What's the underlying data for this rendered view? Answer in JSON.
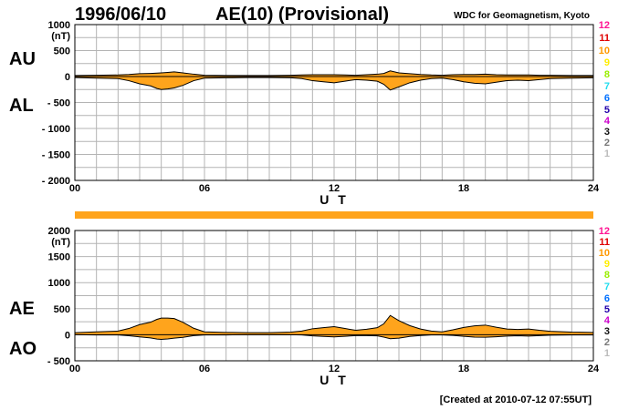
{
  "header": {
    "date": "1996/06/10",
    "index_title": "AE(10) (Provisional)",
    "source": "WDC for Geomagnetism, Kyoto"
  },
  "footer": {
    "created": "[Created at 2010-07-12 07:55UT]"
  },
  "colors": {
    "fill": "#ffa41c",
    "grid": "#b4b4b4",
    "bar": "#ffa41c"
  },
  "legend": {
    "items": [
      {
        "label": "12",
        "color": "#ff1493"
      },
      {
        "label": "11",
        "color": "#e00000"
      },
      {
        "label": "10",
        "color": "#ff9900"
      },
      {
        "label": "9",
        "color": "#ffee00"
      },
      {
        "label": "8",
        "color": "#99ee00"
      },
      {
        "label": "7",
        "color": "#22ddee"
      },
      {
        "label": "6",
        "color": "#0070ff"
      },
      {
        "label": "5",
        "color": "#2200aa"
      },
      {
        "label": "4",
        "color": "#cc00cc"
      },
      {
        "label": "3",
        "color": "#111111"
      },
      {
        "label": "2",
        "color": "#777777"
      },
      {
        "label": "1",
        "color": "#bbbbbb"
      }
    ]
  },
  "chart_data": [
    {
      "type": "area",
      "panel": "AU/AL",
      "upper_label": "AU",
      "lower_label": "AL",
      "xlabel": "U T",
      "ylabel_unit": "(nT)",
      "xlim": [
        0,
        24
      ],
      "ylim": [
        -2000,
        1000
      ],
      "x_ticks": [
        "00",
        "06",
        "12",
        "18",
        "24"
      ],
      "y_ticks": [
        "1000",
        "500",
        "0",
        "- 500",
        "- 1000",
        "- 1500",
        "- 2000"
      ],
      "y_tick_values": [
        1000,
        500,
        0,
        -500,
        -1000,
        -1500,
        -2000
      ],
      "grid": true,
      "x": [
        0,
        1,
        2,
        2.5,
        3,
        3.5,
        3.8,
        4,
        4.3,
        4.6,
        5,
        5.5,
        6,
        7,
        8,
        9,
        10,
        10.5,
        11,
        11.5,
        12,
        12.5,
        13,
        13.5,
        14,
        14.3,
        14.6,
        15,
        15.5,
        16,
        16.5,
        17,
        17.5,
        18,
        18.5,
        19,
        19.5,
        20,
        20.5,
        21,
        21.5,
        22,
        23,
        24
      ],
      "series": [
        {
          "name": "AU",
          "values": [
            20,
            25,
            30,
            40,
            55,
            60,
            65,
            70,
            80,
            90,
            70,
            45,
            25,
            20,
            20,
            20,
            25,
            30,
            35,
            35,
            35,
            30,
            25,
            35,
            45,
            60,
            110,
            70,
            55,
            40,
            30,
            25,
            35,
            40,
            40,
            45,
            35,
            30,
            30,
            30,
            25,
            25,
            20,
            20
          ]
        },
        {
          "name": "AL",
          "values": [
            -20,
            -30,
            -40,
            -80,
            -140,
            -180,
            -230,
            -250,
            -240,
            -220,
            -170,
            -80,
            -30,
            -25,
            -20,
            -20,
            -25,
            -40,
            -80,
            -100,
            -120,
            -90,
            -60,
            -70,
            -90,
            -150,
            -260,
            -200,
            -120,
            -70,
            -40,
            -30,
            -60,
            -100,
            -130,
            -140,
            -110,
            -80,
            -70,
            -80,
            -60,
            -40,
            -30,
            -25
          ]
        }
      ]
    },
    {
      "type": "area",
      "panel": "AE/AO",
      "upper_label": "AE",
      "lower_label": "AO",
      "xlabel": "U T",
      "ylabel_unit": "(nT)",
      "xlim": [
        0,
        24
      ],
      "ylim": [
        -500,
        2000
      ],
      "x_ticks": [
        "00",
        "06",
        "12",
        "18",
        "24"
      ],
      "y_ticks": [
        "2000",
        "1500",
        "1000",
        "500",
        "0",
        "- 500"
      ],
      "y_tick_values": [
        2000,
        1500,
        1000,
        500,
        0,
        -500
      ],
      "grid": true,
      "x": [
        0,
        1,
        2,
        2.5,
        3,
        3.5,
        3.8,
        4,
        4.3,
        4.6,
        5,
        5.5,
        6,
        7,
        8,
        9,
        10,
        10.5,
        11,
        11.5,
        12,
        12.5,
        13,
        13.5,
        14,
        14.3,
        14.6,
        15,
        15.5,
        16,
        16.5,
        17,
        17.5,
        18,
        18.5,
        19,
        19.5,
        20,
        20.5,
        21,
        21.5,
        22,
        23,
        24
      ],
      "series": [
        {
          "name": "AE",
          "values": [
            40,
            55,
            70,
            120,
            195,
            240,
            295,
            320,
            320,
            310,
            240,
            125,
            55,
            45,
            40,
            40,
            50,
            70,
            115,
            135,
            155,
            120,
            85,
            105,
            135,
            210,
            370,
            270,
            175,
            110,
            70,
            55,
            95,
            140,
            170,
            185,
            145,
            110,
            100,
            110,
            85,
            65,
            50,
            45
          ]
        },
        {
          "name": "AO",
          "values": [
            0,
            -3,
            -5,
            -20,
            -42,
            -60,
            -82,
            -90,
            -80,
            -65,
            -50,
            -18,
            -3,
            -3,
            0,
            0,
            0,
            -5,
            -22,
            -32,
            -42,
            -30,
            -18,
            -18,
            -22,
            -45,
            -75,
            -65,
            -32,
            -15,
            -5,
            -3,
            -12,
            -30,
            -45,
            -48,
            -38,
            -25,
            -20,
            -25,
            -18,
            -8,
            -5,
            -3
          ]
        }
      ]
    }
  ]
}
